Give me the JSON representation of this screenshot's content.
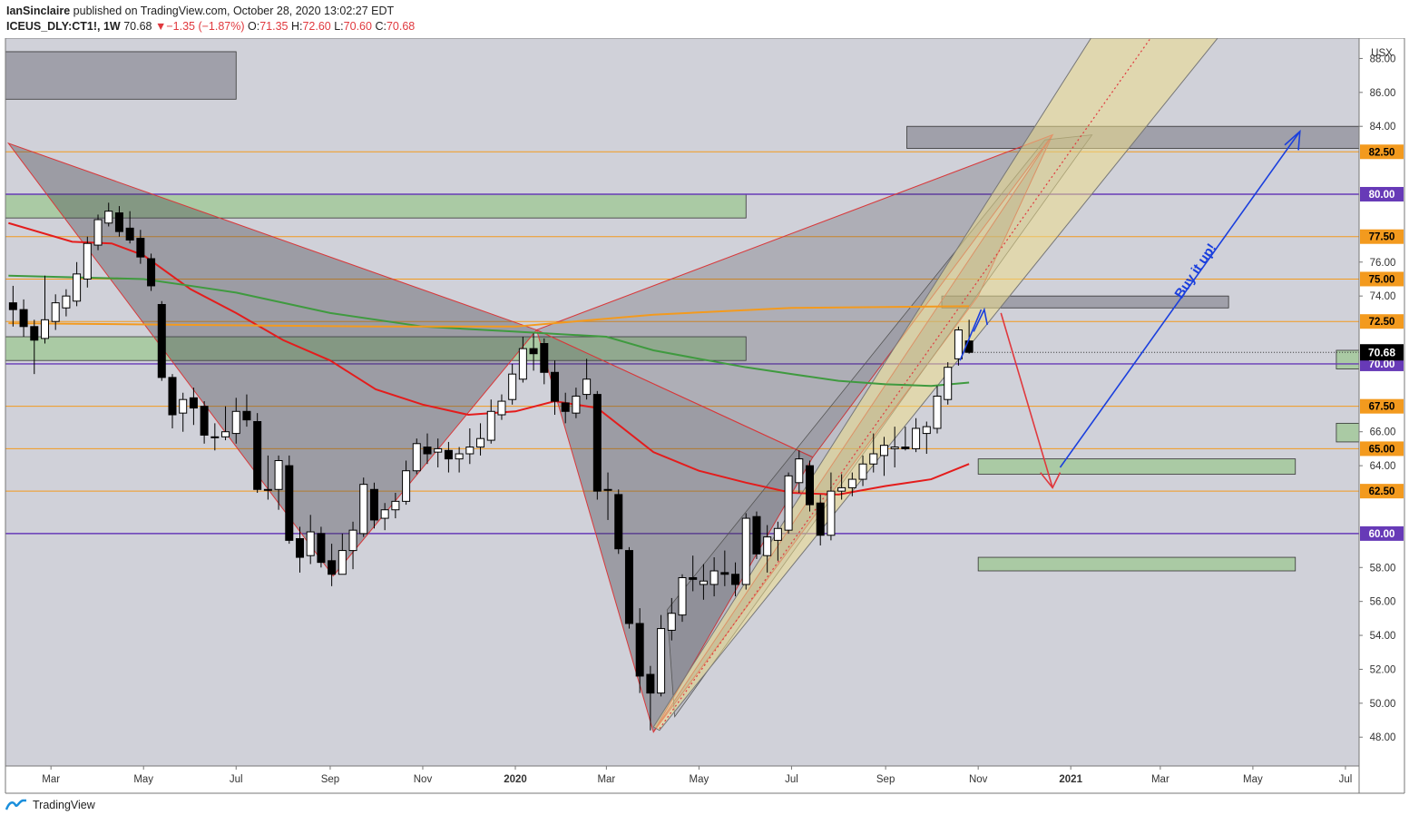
{
  "header": {
    "author": "IanSinclaire",
    "published_text": "published on TradingView.com, October 28, 2020 13:02:27 EDT",
    "symbol": "ICEUS_DLY:CT1!, 1W",
    "last": "70.68",
    "change_arrow": "▼",
    "change": "−1.35 (−1.87%)",
    "open_label": "O:",
    "open": "71.35",
    "high_label": "H:",
    "high": "72.60",
    "low_label": "L:",
    "low": "70.60",
    "close_label": "C:",
    "close": "70.68"
  },
  "footer": {
    "brand": "TradingView"
  },
  "chart_data": {
    "type": "candlestick",
    "currency_label": "USX",
    "y_ticks": [
      "48.00",
      "50.00",
      "52.00",
      "54.00",
      "56.00",
      "58.00",
      "60.00",
      "62.00",
      "64.00",
      "66.00",
      "68.00",
      "70.00",
      "72.00",
      "74.00",
      "76.00",
      "78.00",
      "80.00",
      "82.00",
      "84.00",
      "86.00",
      "88.00"
    ],
    "ylim": [
      46.3,
      89.2
    ],
    "x_ticks": [
      {
        "label": "Mar",
        "date": "2019-03-01"
      },
      {
        "label": "May",
        "date": "2019-05-01"
      },
      {
        "label": "Jul",
        "date": "2019-07-01"
      },
      {
        "label": "Sep",
        "date": "2019-09-01"
      },
      {
        "label": "Nov",
        "date": "2019-11-01"
      },
      {
        "label": "2020",
        "date": "2020-01-01",
        "bold": true
      },
      {
        "label": "Mar",
        "date": "2020-03-01"
      },
      {
        "label": "May",
        "date": "2020-05-01"
      },
      {
        "label": "Jul",
        "date": "2020-07-01"
      },
      {
        "label": "Sep",
        "date": "2020-09-01"
      },
      {
        "label": "Nov",
        "date": "2020-11-01"
      },
      {
        "label": "2021",
        "date": "2021-01-01",
        "bold": true
      },
      {
        "label": "Mar",
        "date": "2021-03-01"
      },
      {
        "label": "May",
        "date": "2021-05-01"
      },
      {
        "label": "Jul",
        "date": "2021-07-01"
      }
    ],
    "xlim": [
      "2019-01-30",
      "2021-07-10"
    ],
    "candles": [
      {
        "d": "2019-02-04",
        "o": 73.6,
        "h": 74.6,
        "l": 72.2,
        "c": 73.2
      },
      {
        "d": "2019-02-11",
        "o": 73.2,
        "h": 73.8,
        "l": 71.6,
        "c": 72.2
      },
      {
        "d": "2019-02-18",
        "o": 72.2,
        "h": 72.6,
        "l": 69.4,
        "c": 71.4
      },
      {
        "d": "2019-02-25",
        "o": 71.5,
        "h": 75.2,
        "l": 71.2,
        "c": 72.6
      },
      {
        "d": "2019-03-04",
        "o": 72.5,
        "h": 74.1,
        "l": 72.0,
        "c": 73.6
      },
      {
        "d": "2019-03-11",
        "o": 73.3,
        "h": 74.4,
        "l": 72.8,
        "c": 74.0
      },
      {
        "d": "2019-03-18",
        "o": 73.7,
        "h": 76.0,
        "l": 73.4,
        "c": 75.3
      },
      {
        "d": "2019-03-25",
        "o": 75.0,
        "h": 77.5,
        "l": 74.5,
        "c": 77.1
      },
      {
        "d": "2019-04-01",
        "o": 77.0,
        "h": 78.8,
        "l": 76.7,
        "c": 78.5
      },
      {
        "d": "2019-04-08",
        "o": 78.3,
        "h": 79.5,
        "l": 78.1,
        "c": 79.0
      },
      {
        "d": "2019-04-15",
        "o": 78.9,
        "h": 79.3,
        "l": 77.5,
        "c": 77.8
      },
      {
        "d": "2019-04-22",
        "o": 78.0,
        "h": 79.0,
        "l": 77.1,
        "c": 77.3
      },
      {
        "d": "2019-04-29",
        "o": 77.4,
        "h": 77.9,
        "l": 75.9,
        "c": 76.3
      },
      {
        "d": "2019-05-06",
        "o": 76.2,
        "h": 76.5,
        "l": 74.3,
        "c": 74.6
      },
      {
        "d": "2019-05-13",
        "o": 73.5,
        "h": 73.7,
        "l": 69.0,
        "c": 69.2
      },
      {
        "d": "2019-05-20",
        "o": 69.2,
        "h": 69.4,
        "l": 66.2,
        "c": 67.0
      },
      {
        "d": "2019-05-27",
        "o": 67.1,
        "h": 68.3,
        "l": 66.0,
        "c": 67.9
      },
      {
        "d": "2019-06-03",
        "o": 68.0,
        "h": 68.6,
        "l": 66.4,
        "c": 67.4
      },
      {
        "d": "2019-06-10",
        "o": 67.5,
        "h": 67.8,
        "l": 65.3,
        "c": 65.8
      },
      {
        "d": "2019-06-17",
        "o": 65.7,
        "h": 66.5,
        "l": 64.9,
        "c": 65.7
      },
      {
        "d": "2019-06-24",
        "o": 65.7,
        "h": 67.5,
        "l": 65.5,
        "c": 66.0
      },
      {
        "d": "2019-07-01",
        "o": 65.9,
        "h": 68.0,
        "l": 65.3,
        "c": 67.2
      },
      {
        "d": "2019-07-08",
        "o": 67.2,
        "h": 68.2,
        "l": 66.3,
        "c": 66.7
      },
      {
        "d": "2019-07-15",
        "o": 66.6,
        "h": 67.1,
        "l": 62.4,
        "c": 62.6
      },
      {
        "d": "2019-07-22",
        "o": 62.6,
        "h": 64.6,
        "l": 62.0,
        "c": 62.6
      },
      {
        "d": "2019-07-29",
        "o": 62.6,
        "h": 64.6,
        "l": 61.4,
        "c": 64.3
      },
      {
        "d": "2019-08-05",
        "o": 64.0,
        "h": 64.6,
        "l": 59.4,
        "c": 59.6
      },
      {
        "d": "2019-08-12",
        "o": 59.7,
        "h": 60.4,
        "l": 57.7,
        "c": 58.6
      },
      {
        "d": "2019-08-19",
        "o": 58.7,
        "h": 61.1,
        "l": 58.2,
        "c": 60.1
      },
      {
        "d": "2019-08-26",
        "o": 60.0,
        "h": 60.4,
        "l": 58.0,
        "c": 58.3
      },
      {
        "d": "2019-09-02",
        "o": 58.4,
        "h": 59.4,
        "l": 56.9,
        "c": 57.6
      },
      {
        "d": "2019-09-09",
        "o": 57.6,
        "h": 60.0,
        "l": 57.6,
        "c": 59.0
      },
      {
        "d": "2019-09-16",
        "o": 59.0,
        "h": 60.7,
        "l": 57.9,
        "c": 60.2
      },
      {
        "d": "2019-09-23",
        "o": 60.0,
        "h": 63.3,
        "l": 59.8,
        "c": 62.9
      },
      {
        "d": "2019-09-30",
        "o": 62.6,
        "h": 63.0,
        "l": 60.3,
        "c": 60.8
      },
      {
        "d": "2019-10-07",
        "o": 60.9,
        "h": 61.8,
        "l": 60.2,
        "c": 61.4
      },
      {
        "d": "2019-10-14",
        "o": 61.4,
        "h": 62.4,
        "l": 60.9,
        "c": 61.9
      },
      {
        "d": "2019-10-21",
        "o": 61.9,
        "h": 64.3,
        "l": 61.7,
        "c": 63.7
      },
      {
        "d": "2019-10-28",
        "o": 63.7,
        "h": 65.6,
        "l": 63.5,
        "c": 65.3
      },
      {
        "d": "2019-11-04",
        "o": 65.1,
        "h": 65.9,
        "l": 64.1,
        "c": 64.7
      },
      {
        "d": "2019-11-11",
        "o": 64.8,
        "h": 65.6,
        "l": 63.9,
        "c": 65.0
      },
      {
        "d": "2019-11-18",
        "o": 64.9,
        "h": 65.4,
        "l": 63.6,
        "c": 64.4
      },
      {
        "d": "2019-11-25",
        "o": 64.4,
        "h": 65.1,
        "l": 63.6,
        "c": 64.7
      },
      {
        "d": "2019-12-02",
        "o": 64.7,
        "h": 66.2,
        "l": 64.1,
        "c": 65.1
      },
      {
        "d": "2019-12-09",
        "o": 65.1,
        "h": 66.5,
        "l": 64.6,
        "c": 65.6
      },
      {
        "d": "2019-12-16",
        "o": 65.5,
        "h": 67.9,
        "l": 65.3,
        "c": 67.2
      },
      {
        "d": "2019-12-23",
        "o": 67.0,
        "h": 68.2,
        "l": 66.7,
        "c": 67.8
      },
      {
        "d": "2019-12-30",
        "o": 67.9,
        "h": 70.0,
        "l": 67.6,
        "c": 69.4
      },
      {
        "d": "2020-01-06",
        "o": 69.1,
        "h": 71.6,
        "l": 68.9,
        "c": 70.9
      },
      {
        "d": "2020-01-13",
        "o": 70.9,
        "h": 71.8,
        "l": 69.6,
        "c": 70.6
      },
      {
        "d": "2020-01-20",
        "o": 71.2,
        "h": 71.5,
        "l": 68.8,
        "c": 69.5
      },
      {
        "d": "2020-01-27",
        "o": 69.5,
        "h": 70.2,
        "l": 67.0,
        "c": 67.8
      },
      {
        "d": "2020-02-03",
        "o": 67.7,
        "h": 68.3,
        "l": 66.5,
        "c": 67.2
      },
      {
        "d": "2020-02-10",
        "o": 67.1,
        "h": 68.6,
        "l": 66.8,
        "c": 68.1
      },
      {
        "d": "2020-02-17",
        "o": 68.2,
        "h": 70.3,
        "l": 67.9,
        "c": 69.1
      },
      {
        "d": "2020-02-24",
        "o": 68.2,
        "h": 68.4,
        "l": 62.0,
        "c": 62.5
      },
      {
        "d": "2020-03-02",
        "o": 62.6,
        "h": 63.6,
        "l": 60.8,
        "c": 62.6
      },
      {
        "d": "2020-03-09",
        "o": 62.3,
        "h": 62.6,
        "l": 58.8,
        "c": 59.1
      },
      {
        "d": "2020-03-16",
        "o": 59.0,
        "h": 59.2,
        "l": 54.4,
        "c": 54.7
      },
      {
        "d": "2020-03-23",
        "o": 54.7,
        "h": 55.6,
        "l": 50.6,
        "c": 51.6
      },
      {
        "d": "2020-03-30",
        "o": 51.7,
        "h": 52.2,
        "l": 48.4,
        "c": 50.6
      },
      {
        "d": "2020-04-06",
        "o": 50.6,
        "h": 55.2,
        "l": 50.4,
        "c": 54.4
      },
      {
        "d": "2020-04-13",
        "o": 54.3,
        "h": 56.2,
        "l": 53.7,
        "c": 55.3
      },
      {
        "d": "2020-04-20",
        "o": 55.2,
        "h": 57.6,
        "l": 54.8,
        "c": 57.4
      },
      {
        "d": "2020-04-27",
        "o": 57.4,
        "h": 58.7,
        "l": 56.6,
        "c": 57.3
      },
      {
        "d": "2020-05-04",
        "o": 57.0,
        "h": 58.2,
        "l": 56.1,
        "c": 57.2
      },
      {
        "d": "2020-05-11",
        "o": 57.0,
        "h": 58.6,
        "l": 56.3,
        "c": 57.8
      },
      {
        "d": "2020-05-18",
        "o": 57.7,
        "h": 59.0,
        "l": 56.9,
        "c": 57.6
      },
      {
        "d": "2020-05-25",
        "o": 57.6,
        "h": 58.3,
        "l": 56.3,
        "c": 57.0
      },
      {
        "d": "2020-06-01",
        "o": 57.0,
        "h": 61.2,
        "l": 56.7,
        "c": 60.9
      },
      {
        "d": "2020-06-08",
        "o": 61.0,
        "h": 61.3,
        "l": 58.5,
        "c": 58.8
      },
      {
        "d": "2020-06-15",
        "o": 58.7,
        "h": 60.5,
        "l": 57.7,
        "c": 59.8
      },
      {
        "d": "2020-06-22",
        "o": 59.6,
        "h": 60.7,
        "l": 58.4,
        "c": 60.3
      },
      {
        "d": "2020-06-29",
        "o": 60.2,
        "h": 63.6,
        "l": 60.0,
        "c": 63.4
      },
      {
        "d": "2020-07-06",
        "o": 63.0,
        "h": 64.9,
        "l": 62.4,
        "c": 64.4
      },
      {
        "d": "2020-07-13",
        "o": 64.0,
        "h": 64.3,
        "l": 61.3,
        "c": 61.7
      },
      {
        "d": "2020-07-20",
        "o": 61.8,
        "h": 62.3,
        "l": 59.3,
        "c": 59.9
      },
      {
        "d": "2020-07-27",
        "o": 59.9,
        "h": 63.6,
        "l": 59.6,
        "c": 62.5
      },
      {
        "d": "2020-08-03",
        "o": 62.5,
        "h": 63.5,
        "l": 62.0,
        "c": 62.7
      },
      {
        "d": "2020-08-10",
        "o": 62.7,
        "h": 63.6,
        "l": 62.2,
        "c": 63.2
      },
      {
        "d": "2020-08-17",
        "o": 63.2,
        "h": 64.6,
        "l": 62.8,
        "c": 64.1
      },
      {
        "d": "2020-08-24",
        "o": 64.1,
        "h": 65.9,
        "l": 63.6,
        "c": 64.7
      },
      {
        "d": "2020-08-31",
        "o": 64.6,
        "h": 65.7,
        "l": 63.4,
        "c": 65.2
      },
      {
        "d": "2020-09-07",
        "o": 65.0,
        "h": 66.3,
        "l": 63.9,
        "c": 65.1
      },
      {
        "d": "2020-09-14",
        "o": 65.1,
        "h": 66.3,
        "l": 64.9,
        "c": 65.0
      },
      {
        "d": "2020-09-21",
        "o": 65.0,
        "h": 66.8,
        "l": 64.8,
        "c": 66.2
      },
      {
        "d": "2020-09-28",
        "o": 65.9,
        "h": 66.6,
        "l": 64.7,
        "c": 66.3
      },
      {
        "d": "2020-10-05",
        "o": 66.2,
        "h": 68.7,
        "l": 65.9,
        "c": 68.1
      },
      {
        "d": "2020-10-12",
        "o": 67.9,
        "h": 70.1,
        "l": 67.6,
        "c": 69.8
      },
      {
        "d": "2020-10-19",
        "o": 70.3,
        "h": 72.2,
        "l": 69.9,
        "c": 72.0
      },
      {
        "d": "2020-10-26",
        "o": 71.35,
        "h": 72.6,
        "l": 70.6,
        "c": 70.68
      }
    ],
    "moving_averages": [
      {
        "color": "#e41c1c",
        "points": [
          [
            "2019-02-01",
            78.3
          ],
          [
            "2019-03-15",
            77.2
          ],
          [
            "2019-04-10",
            77.1
          ],
          [
            "2019-05-01",
            76.4
          ],
          [
            "2019-06-01",
            74.4
          ],
          [
            "2019-07-01",
            73.0
          ],
          [
            "2019-08-01",
            71.4
          ],
          [
            "2019-09-01",
            70.2
          ],
          [
            "2019-10-01",
            68.5
          ],
          [
            "2019-11-01",
            67.6
          ],
          [
            "2019-12-01",
            67.0
          ],
          [
            "2020-01-01",
            67.2
          ],
          [
            "2020-01-27",
            67.8
          ],
          [
            "2020-02-24",
            67.4
          ],
          [
            "2020-04-01",
            64.8
          ],
          [
            "2020-05-01",
            63.7
          ],
          [
            "2020-06-01",
            63.0
          ],
          [
            "2020-07-01",
            62.4
          ],
          [
            "2020-08-01",
            62.3
          ],
          [
            "2020-09-01",
            62.8
          ],
          [
            "2020-10-01",
            63.2
          ],
          [
            "2020-10-26",
            64.1
          ]
        ]
      },
      {
        "color": "#3f9a3f",
        "points": [
          [
            "2019-02-01",
            75.2
          ],
          [
            "2019-05-01",
            75.0
          ],
          [
            "2019-06-01",
            74.6
          ],
          [
            "2019-07-01",
            74.2
          ],
          [
            "2019-09-01",
            73.0
          ],
          [
            "2019-11-01",
            72.2
          ],
          [
            "2020-01-01",
            71.9
          ],
          [
            "2020-03-01",
            71.6
          ],
          [
            "2020-04-01",
            70.8
          ],
          [
            "2020-05-01",
            70.3
          ],
          [
            "2020-06-01",
            69.8
          ],
          [
            "2020-07-01",
            69.4
          ],
          [
            "2020-08-01",
            69.0
          ],
          [
            "2020-09-01",
            68.8
          ],
          [
            "2020-10-01",
            68.7
          ],
          [
            "2020-10-26",
            68.9
          ]
        ]
      },
      {
        "color": "#f39a1e",
        "points": [
          [
            "2019-02-01",
            72.4
          ],
          [
            "2019-06-01",
            72.3
          ],
          [
            "2019-10-01",
            72.2
          ],
          [
            "2020-01-01",
            72.2
          ],
          [
            "2020-04-01",
            72.9
          ],
          [
            "2020-07-01",
            73.3
          ],
          [
            "2020-10-26",
            73.4
          ]
        ]
      }
    ],
    "horizontal_levels": [
      {
        "value": 82.5,
        "label": "82.50",
        "color": "#f39a1e"
      },
      {
        "value": 80.0,
        "label": "80.00",
        "color": "#673ab7"
      },
      {
        "value": 77.5,
        "label": "77.50",
        "color": "#f39a1e"
      },
      {
        "value": 75.0,
        "label": "75.00",
        "color": "#f39a1e"
      },
      {
        "value": 72.5,
        "label": "72.50",
        "color": "#f39a1e"
      },
      {
        "value": 70.0,
        "label": "70.00",
        "color": "#673ab7"
      },
      {
        "value": 67.5,
        "label": "67.50",
        "color": "#f39a1e"
      },
      {
        "value": 65.0,
        "label": "65.00",
        "color": "#f39a1e"
      },
      {
        "value": 62.5,
        "label": "62.50",
        "color": "#f39a1e"
      },
      {
        "value": 60.0,
        "label": "60.00",
        "color": "#673ab7"
      }
    ],
    "last_price": {
      "value": 70.68,
      "label": "70.68"
    },
    "annotation": {
      "text": "Buy it up!",
      "color": "#1a3fdd"
    }
  }
}
